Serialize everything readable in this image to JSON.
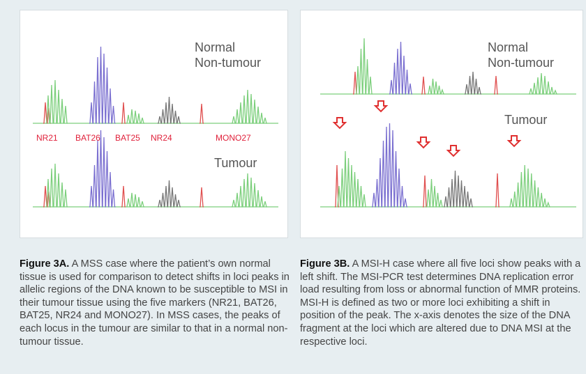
{
  "panel_a": {
    "label_normal_line1": "Normal",
    "label_normal_line2": "Non-tumour",
    "label_tumour": "Tumour",
    "markers": [
      "NR21",
      "BAT26",
      "BAT25",
      "NR24",
      "MONO27"
    ]
  },
  "panel_b": {
    "label_normal_line1": "Normal",
    "label_normal_line2": "Non-tumour",
    "label_tumour": "Tumour"
  },
  "colors": {
    "green": "#7ccf7c",
    "blue": "#7a6fd0",
    "red": "#e05050",
    "gray": "#777777",
    "marker_text": "#e0203a",
    "arrow": "#e03030"
  },
  "caption_a": {
    "title": "Figure 3A.",
    "text": "A MSS case where the patient’s own normal tissue is used for comparison to detect shifts in loci peaks in allelic regions of the DNA known to be susceptible to MSI in their tumour tissue using the five markers (NR21, BAT26, BAT25, NR24 and MONO27). In MSS cases, the peaks of each locus in the tumour are similar to that in a normal non-tumour tissue."
  },
  "caption_b": {
    "title": "Figure 3B.",
    "text": "A MSI-H case where all five loci show peaks with a left shift. The MSI-PCR test determines DNA replication error load resulting from loss or abnormal function of MMR proteins. MSI-H is defined as two or more loci exhibiting a shift in position of the peak. The x-axis denotes the size of the DNA fragment at the loci which are altered due to DNA MSI at the respective loci."
  }
}
